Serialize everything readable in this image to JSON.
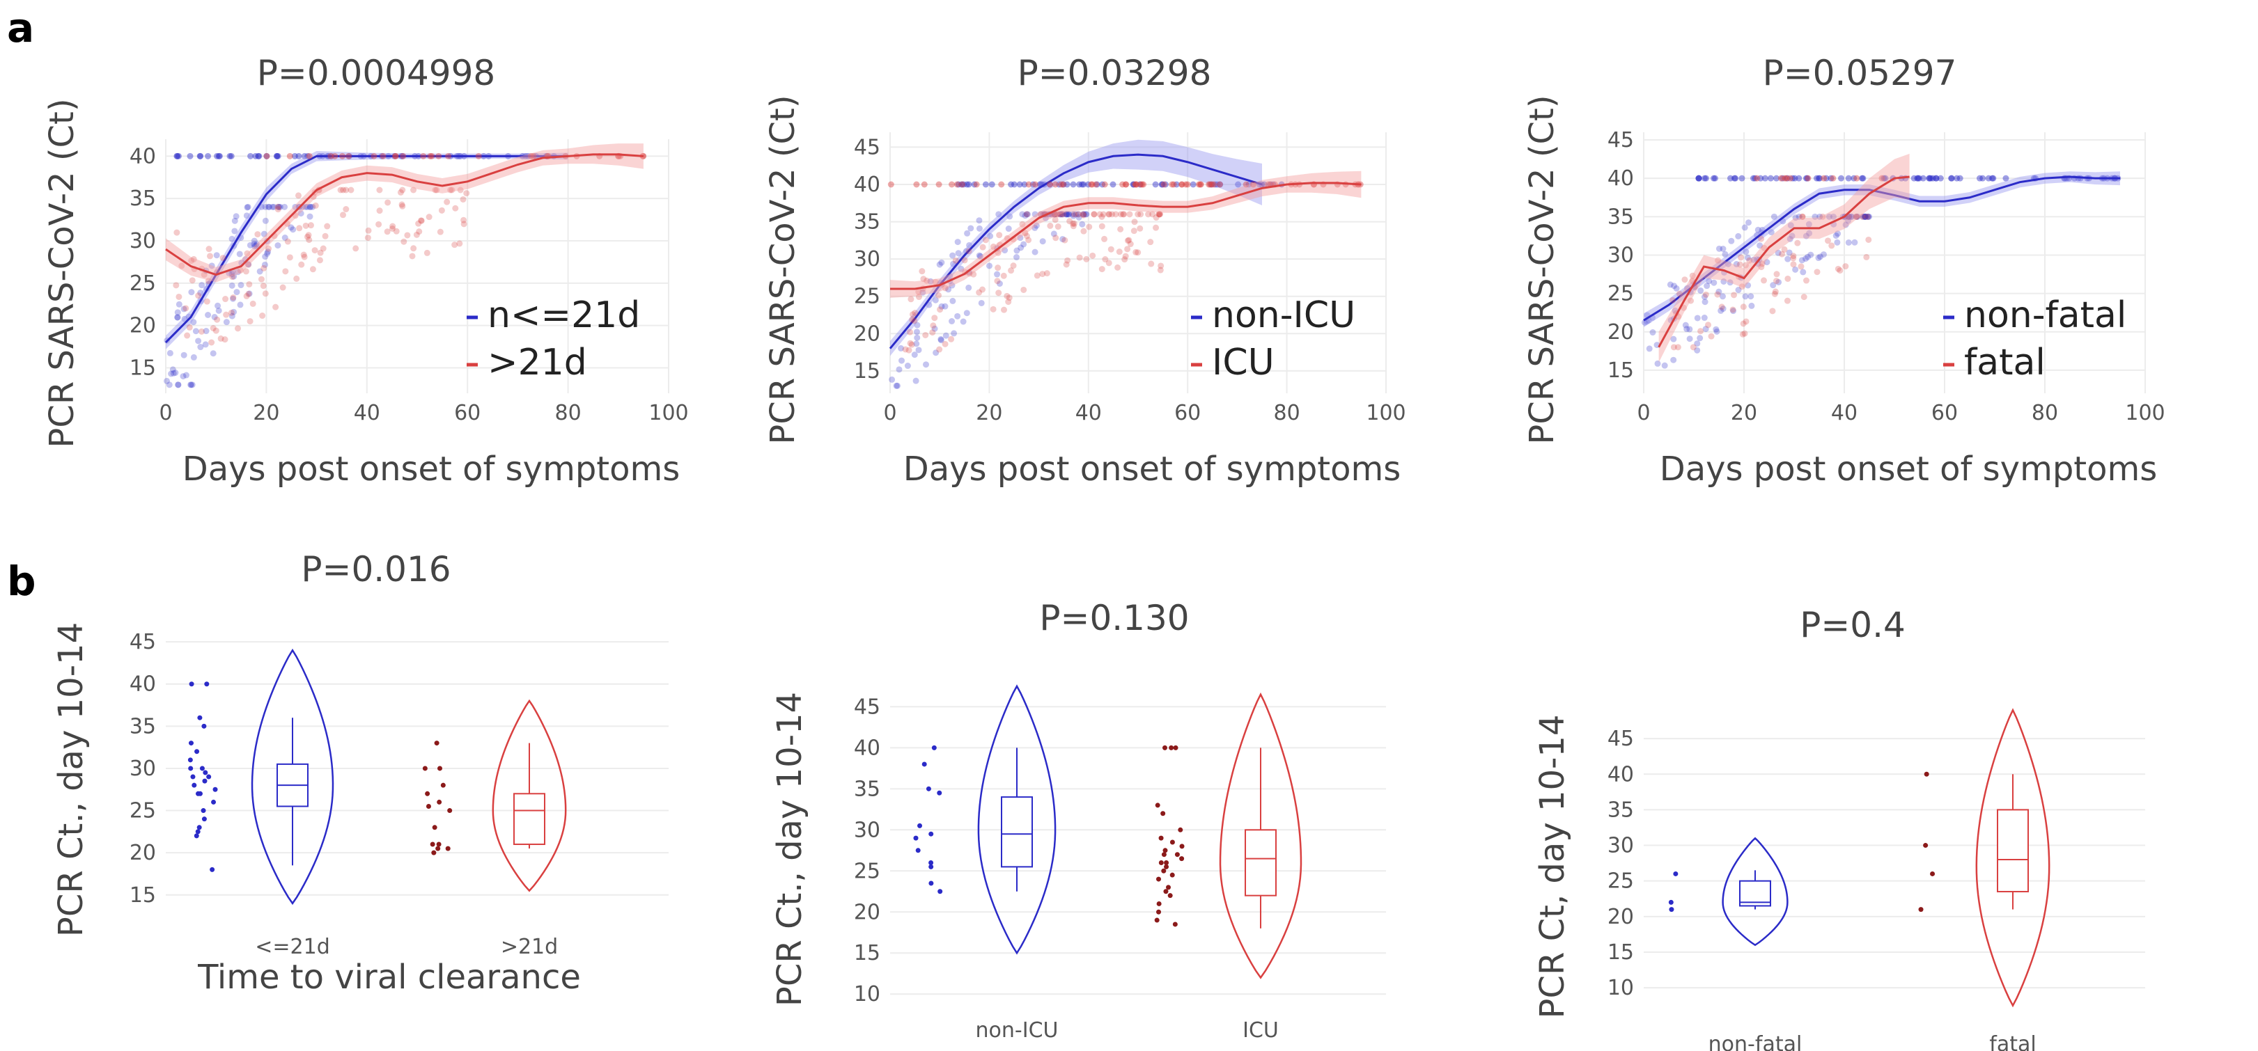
{
  "panel_labels": [
    "a",
    "b"
  ],
  "colors": {
    "blue": "#2b2bc8",
    "red": "#d94040",
    "darkred": "#8b1a1a",
    "bluefill": "#9a9af0",
    "redfill": "#f4a0a0"
  },
  "chart_data": [
    {
      "type": "scatter",
      "panel": "a",
      "title": "P=0.0004998",
      "xlabel": "Days post onset of symptoms",
      "ylabel": "PCR SARS-CoV-2 (Ct)",
      "xlim": [
        0,
        100
      ],
      "ylim": [
        12,
        42
      ],
      "xticks": [
        0,
        20,
        40,
        60,
        80,
        100
      ],
      "yticks": [
        15,
        20,
        25,
        30,
        35,
        40
      ],
      "legend": [
        {
          "name": "n<=21d",
          "color": "blue"
        },
        {
          "name": ">21d",
          "color": "red"
        }
      ],
      "series": [
        {
          "name": "n<=21d",
          "color": "blue",
          "trend": [
            [
              0,
              18
            ],
            [
              5,
              21
            ],
            [
              10,
              26
            ],
            [
              15,
              31
            ],
            [
              20,
              35.5
            ],
            [
              25,
              38.5
            ],
            [
              30,
              40
            ],
            [
              40,
              40
            ],
            [
              50,
              40
            ],
            [
              60,
              40
            ],
            [
              70,
              40
            ],
            [
              80,
              40
            ]
          ],
          "ribbon": [
            0.8,
            0.8,
            0.8,
            0.8,
            0.8,
            0.6,
            0.6,
            0.4,
            0.3,
            0.3,
            0.3,
            0.4
          ],
          "cloud": {
            "x": [
              0,
              30
            ],
            "y": [
              13,
              34
            ],
            "n": 110
          },
          "ceiling": {
            "x": [
              0,
              80
            ],
            "y": 40,
            "n": 55
          }
        },
        {
          "name": ">21d",
          "color": "red",
          "trend": [
            [
              0,
              29
            ],
            [
              5,
              27
            ],
            [
              10,
              26
            ],
            [
              15,
              27
            ],
            [
              20,
              30
            ],
            [
              25,
              33
            ],
            [
              30,
              36
            ],
            [
              35,
              37.5
            ],
            [
              40,
              38
            ],
            [
              45,
              37.8
            ],
            [
              50,
              37
            ],
            [
              55,
              36.5
            ],
            [
              60,
              37
            ],
            [
              65,
              38
            ],
            [
              70,
              39
            ],
            [
              75,
              39.8
            ],
            [
              80,
              40
            ],
            [
              85,
              40.2
            ],
            [
              90,
              40.2
            ],
            [
              95,
              40
            ]
          ],
          "ribbon": [
            1.3,
            1.1,
            0.9,
            0.8,
            0.8,
            0.8,
            0.8,
            0.8,
            0.9,
            0.9,
            0.9,
            0.9,
            0.9,
            0.9,
            0.9,
            0.9,
            0.9,
            1.1,
            1.3,
            1.5
          ],
          "cloud": {
            "x": [
              2,
              60
            ],
            "y": [
              18,
              36
            ],
            "n": 130
          },
          "ceiling": {
            "x": [
              20,
              95
            ],
            "y": 40,
            "n": 30
          }
        }
      ]
    },
    {
      "type": "scatter",
      "panel": "a",
      "title": "P=0.03298",
      "xlabel": "Days post onset of symptoms",
      "ylabel": "PCR SARS-CoV-2 (Ct)",
      "xlim": [
        0,
        100
      ],
      "ylim": [
        12,
        47
      ],
      "xticks": [
        0,
        20,
        40,
        60,
        80,
        100
      ],
      "yticks": [
        15,
        20,
        25,
        30,
        35,
        40,
        45
      ],
      "legend": [
        {
          "name": "non-ICU",
          "color": "blue"
        },
        {
          "name": "ICU",
          "color": "red"
        }
      ],
      "series": [
        {
          "name": "non-ICU",
          "color": "blue",
          "trend": [
            [
              0,
              18
            ],
            [
              5,
              22
            ],
            [
              10,
              26.5
            ],
            [
              15,
              30.5
            ],
            [
              20,
              34
            ],
            [
              25,
              37
            ],
            [
              30,
              39.5
            ],
            [
              35,
              41.5
            ],
            [
              40,
              43
            ],
            [
              45,
              43.8
            ],
            [
              50,
              44
            ],
            [
              55,
              43.8
            ],
            [
              60,
              43
            ],
            [
              65,
              42
            ],
            [
              70,
              41
            ],
            [
              75,
              40
            ]
          ],
          "ribbon": [
            1.0,
            0.9,
            0.8,
            0.8,
            0.8,
            0.8,
            0.9,
            1.1,
            1.4,
            1.7,
            2.0,
            2.0,
            2.0,
            2.1,
            2.4,
            2.8
          ],
          "cloud": {
            "x": [
              0,
              40
            ],
            "y": [
              13,
              36
            ],
            "n": 110
          },
          "ceiling": {
            "x": [
              10,
              80
            ],
            "y": 40,
            "n": 50
          }
        },
        {
          "name": "ICU",
          "color": "red",
          "trend": [
            [
              0,
              26
            ],
            [
              5,
              26
            ],
            [
              10,
              26.5
            ],
            [
              15,
              28
            ],
            [
              20,
              30.5
            ],
            [
              25,
              33
            ],
            [
              30,
              35.5
            ],
            [
              35,
              37
            ],
            [
              40,
              37.5
            ],
            [
              45,
              37.5
            ],
            [
              50,
              37.2
            ],
            [
              55,
              37
            ],
            [
              60,
              37
            ],
            [
              65,
              37.5
            ],
            [
              70,
              38.5
            ],
            [
              75,
              39.5
            ],
            [
              80,
              40
            ],
            [
              85,
              40.2
            ],
            [
              90,
              40.2
            ],
            [
              95,
              40
            ]
          ],
          "ribbon": [
            1.2,
            1.0,
            0.9,
            0.8,
            0.8,
            0.8,
            0.8,
            0.8,
            0.8,
            0.8,
            0.8,
            0.8,
            0.8,
            0.9,
            1.0,
            1.1,
            1.1,
            1.3,
            1.5,
            1.8
          ],
          "cloud": {
            "x": [
              3,
              55
            ],
            "y": [
              17,
              36
            ],
            "n": 140
          },
          "ceiling": {
            "x": [
              0,
              95
            ],
            "y": 40,
            "n": 60
          }
        }
      ]
    },
    {
      "type": "scatter",
      "panel": "a",
      "title": "P=0.05297",
      "xlabel": "Days post onset of symptoms",
      "ylabel": "PCR SARS-CoV-2 (Ct)",
      "xlim": [
        0,
        100
      ],
      "ylim": [
        12,
        46
      ],
      "xticks": [
        0,
        20,
        40,
        60,
        80,
        100
      ],
      "yticks": [
        15,
        20,
        25,
        30,
        35,
        40,
        45
      ],
      "legend": [
        {
          "name": "non-fatal",
          "color": "blue"
        },
        {
          "name": "fatal",
          "color": "red"
        }
      ],
      "series": [
        {
          "name": "non-fatal",
          "color": "blue",
          "trend": [
            [
              0,
              21.5
            ],
            [
              5,
              23.5
            ],
            [
              10,
              26
            ],
            [
              15,
              28.5
            ],
            [
              20,
              31
            ],
            [
              25,
              33.5
            ],
            [
              30,
              36
            ],
            [
              35,
              38
            ],
            [
              40,
              38.5
            ],
            [
              45,
              38.5
            ],
            [
              50,
              37.8
            ],
            [
              55,
              37
            ],
            [
              60,
              37
            ],
            [
              65,
              37.5
            ],
            [
              70,
              38.5
            ],
            [
              75,
              39.5
            ],
            [
              80,
              40
            ],
            [
              85,
              40.2
            ],
            [
              90,
              40
            ],
            [
              95,
              40
            ]
          ],
          "ribbon": [
            0.9,
            0.8,
            0.7,
            0.7,
            0.7,
            0.7,
            0.7,
            0.7,
            0.7,
            0.7,
            0.7,
            0.7,
            0.7,
            0.7,
            0.7,
            0.7,
            0.7,
            0.7,
            0.8,
            0.9
          ],
          "cloud": {
            "x": [
              0,
              45
            ],
            "y": [
              14,
              35
            ],
            "n": 130
          },
          "ceiling": {
            "x": [
              10,
              95
            ],
            "y": 40,
            "n": 80
          }
        },
        {
          "name": "fatal",
          "color": "red",
          "trend": [
            [
              3,
              18
            ],
            [
              8,
              24
            ],
            [
              12,
              28.5
            ],
            [
              16,
              28
            ],
            [
              20,
              27
            ],
            [
              25,
              31
            ],
            [
              30,
              33.5
            ],
            [
              35,
              33.5
            ],
            [
              40,
              35
            ],
            [
              45,
              38
            ],
            [
              50,
              40
            ],
            [
              53,
              40.2
            ]
          ],
          "ribbon": [
            2.0,
            1.5,
            1.5,
            1.3,
            1.3,
            1.3,
            1.3,
            1.4,
            1.6,
            2.0,
            2.5,
            3.0
          ],
          "cloud": {
            "x": [
              5,
              45
            ],
            "y": [
              18,
              35
            ],
            "n": 70
          },
          "ceiling": {
            "x": [
              15,
              50
            ],
            "y": 40,
            "n": 10
          }
        }
      ]
    },
    {
      "type": "violin",
      "panel": "b",
      "title": "P=0.016",
      "ylabel": "PCR Ct., day 10-14",
      "xlabel": "Time to viral clearance",
      "ylim": [
        13,
        46
      ],
      "yticks": [
        15,
        20,
        25,
        30,
        35,
        40,
        45
      ],
      "groups": [
        {
          "label": "<=21d",
          "color": "blue",
          "box": {
            "q1": 25.5,
            "median": 28,
            "q3": 30.5,
            "whisker_low": 18.5,
            "whisker_high": 36
          },
          "violin": {
            "min": 14,
            "max": 44,
            "mode": 28,
            "width": 1.0
          },
          "points": [
            40,
            40,
            36,
            35,
            33,
            32,
            31,
            30,
            30,
            29.5,
            29,
            29,
            28.5,
            28,
            27.5,
            27,
            27,
            26,
            25,
            24,
            23,
            22.5,
            22,
            18
          ]
        },
        {
          "label": ">21d",
          "color": "red",
          "box": {
            "q1": 21,
            "median": 25,
            "q3": 27,
            "whisker_low": 20.5,
            "whisker_high": 33
          },
          "violin": {
            "min": 15.5,
            "max": 38,
            "mode": 25,
            "width": 0.9
          },
          "points": [
            33,
            30,
            30,
            28,
            27,
            26,
            25.5,
            25,
            23,
            21,
            20.5,
            20.5,
            21,
            20
          ]
        }
      ]
    },
    {
      "type": "violin",
      "panel": "b",
      "title": "P=0.130",
      "ylabel": "PCR Ct., day 10-14",
      "xlabel": "",
      "ylim": [
        9,
        48
      ],
      "yticks": [
        10,
        15,
        20,
        25,
        30,
        35,
        40,
        45
      ],
      "groups": [
        {
          "label": "non-ICU",
          "color": "blue",
          "box": {
            "q1": 25.5,
            "median": 29.5,
            "q3": 34,
            "whisker_low": 22.5,
            "whisker_high": 40
          },
          "violin": {
            "min": 15,
            "max": 47.5,
            "mode": 30,
            "width": 0.95
          },
          "points": [
            40,
            38,
            35,
            34.5,
            30.5,
            29.5,
            29,
            27.5,
            26,
            25.5,
            23.5,
            22.5
          ]
        },
        {
          "label": "ICU",
          "color": "red",
          "box": {
            "q1": 22,
            "median": 26.5,
            "q3": 30,
            "whisker_low": 18,
            "whisker_high": 40
          },
          "violin": {
            "min": 12,
            "max": 46.5,
            "mode": 26,
            "width": 1.0
          },
          "points": [
            40,
            40,
            40,
            33,
            32,
            30,
            29,
            28.5,
            28,
            27.5,
            27,
            27,
            26.5,
            26,
            26,
            25.5,
            25,
            24.5,
            24,
            23,
            22.5,
            22,
            21,
            20,
            19,
            18.5
          ]
        }
      ]
    },
    {
      "type": "violin",
      "panel": "b",
      "title": "P=0.4",
      "ylabel": "PCR Ct, day 10-14",
      "xlabel": "",
      "ylim": [
        6,
        50
      ],
      "yticks": [
        10,
        15,
        20,
        25,
        30,
        35,
        40,
        45
      ],
      "groups": [
        {
          "label": "non-fatal",
          "color": "blue",
          "box": {
            "q1": 21.5,
            "median": 22,
            "q3": 25,
            "whisker_low": 21,
            "whisker_high": 26.5
          },
          "violin": {
            "min": 16,
            "max": 31,
            "mode": 22,
            "width": 0.8
          },
          "points": [
            26,
            22,
            21
          ]
        },
        {
          "label": "fatal",
          "color": "red",
          "box": {
            "q1": 23.5,
            "median": 28,
            "q3": 35,
            "whisker_low": 21,
            "whisker_high": 40
          },
          "violin": {
            "min": 7.5,
            "max": 49,
            "mode": 27,
            "width": 0.9
          },
          "points": [
            40,
            30,
            26,
            21
          ]
        }
      ]
    }
  ]
}
